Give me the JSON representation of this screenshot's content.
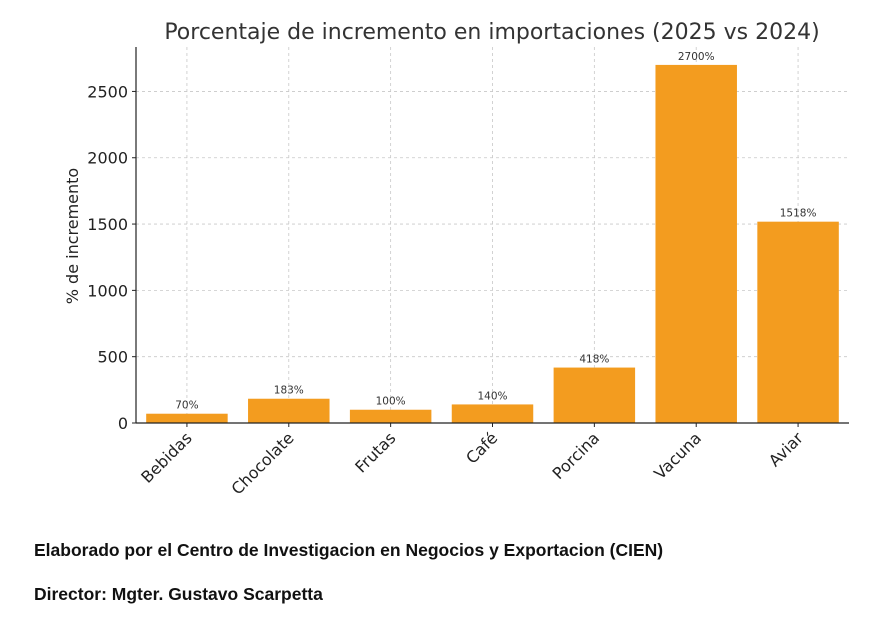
{
  "chart_data": {
    "type": "bar",
    "title": "Porcentaje de incremento en importaciones (2025 vs 2024)",
    "xlabel": "",
    "ylabel": "% de incremento",
    "categories": [
      "Bebidas",
      "Chocolate",
      "Frutas",
      "Café",
      "Porcina",
      "Vacuna",
      "Aviar"
    ],
    "values": [
      70,
      183,
      100,
      140,
      418,
      2700,
      1518
    ],
    "data_labels": [
      "70%",
      "183%",
      "100%",
      "140%",
      "418%",
      "2700%",
      "1518%"
    ],
    "ylim": [
      0,
      2835
    ],
    "yticks": [
      0,
      500,
      1000,
      1500,
      2000,
      2500
    ],
    "grid": true,
    "bar_color": "#F39C1F",
    "legend": "none"
  },
  "footer": {
    "credit": "Elaborado por el Centro de Investigacion en Negocios y Exportacion (CIEN)",
    "director": "Director: Mgter. Gustavo Scarpetta"
  }
}
